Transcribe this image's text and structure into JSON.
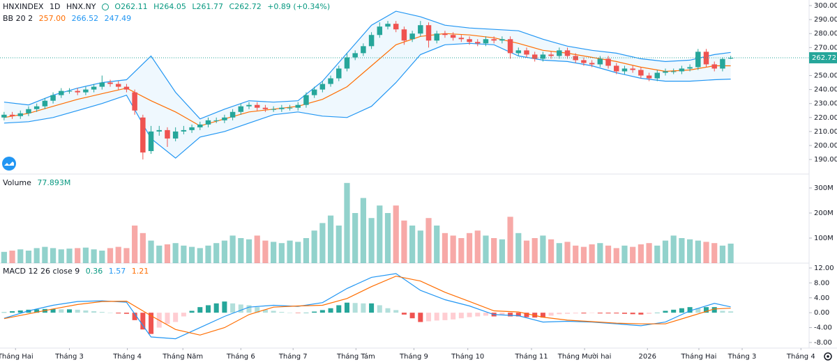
{
  "chart_data": [
    {
      "type": "candlestick",
      "symbol": "HNXINDEX",
      "interval": "1D",
      "exchange": "HNX.NY",
      "ohlc_labels": [
        "O",
        "H",
        "L",
        "C"
      ],
      "ohlc_values": [
        "262.11",
        "264.05",
        "261.77",
        "262.72"
      ],
      "change": "+0.89 (+0.34%)",
      "bb_legend": "BB 20 2",
      "bb_legend_values": [
        "257.00",
        "266.52",
        "247.49"
      ],
      "up_color": "#26a69a",
      "down_color": "#ef5350",
      "open": [
        220,
        222,
        221,
        223,
        226,
        228,
        232,
        236,
        239,
        239,
        238,
        240,
        242,
        245,
        244,
        242,
        238,
        220,
        196,
        210,
        211,
        205,
        210,
        211,
        213,
        215,
        218,
        218,
        220,
        224,
        228,
        229,
        227,
        226,
        226,
        227,
        227,
        229,
        236,
        240,
        244,
        248,
        255,
        263,
        266,
        271,
        279,
        285,
        287,
        283,
        276,
        280,
        286,
        275,
        280,
        279,
        277,
        276,
        274,
        273,
        276,
        275,
        276,
        266,
        268,
        265,
        262,
        265,
        264,
        268,
        264,
        261,
        259,
        258,
        262,
        257,
        253,
        255,
        254,
        250,
        248,
        252,
        253,
        253,
        255,
        256,
        267,
        258,
        255,
        262.11
      ],
      "high": [
        224,
        224,
        225,
        228,
        230,
        234,
        238,
        241,
        241,
        241,
        242,
        244,
        250,
        247,
        246,
        244,
        240,
        222,
        214,
        214,
        213,
        213,
        214,
        215,
        217,
        220,
        220,
        222,
        226,
        230,
        231,
        231,
        229,
        228,
        229,
        229,
        231,
        238,
        242,
        246,
        250,
        257,
        266,
        268,
        273,
        281,
        288,
        289,
        289,
        285,
        282,
        289,
        288,
        282,
        282,
        281,
        279,
        278,
        276,
        278,
        278,
        278,
        278,
        270,
        270,
        267,
        267,
        267,
        270,
        270,
        266,
        263,
        261,
        264,
        264,
        259,
        257,
        257,
        256,
        252,
        254,
        255,
        255,
        257,
        258,
        269,
        269,
        260,
        263,
        264.05
      ],
      "low": [
        218,
        219,
        219,
        221,
        224,
        226,
        230,
        234,
        237,
        236,
        236,
        238,
        240,
        242,
        240,
        238,
        222,
        190,
        194,
        207,
        199,
        203,
        208,
        209,
        211,
        213,
        216,
        216,
        218,
        222,
        226,
        225,
        224,
        224,
        224,
        225,
        225,
        227,
        234,
        238,
        242,
        246,
        253,
        261,
        264,
        269,
        277,
        283,
        281,
        272,
        274,
        278,
        270,
        273,
        277,
        275,
        274,
        272,
        271,
        271,
        273,
        273,
        262,
        264,
        263,
        260,
        260,
        262,
        262,
        262,
        259,
        257,
        256,
        256,
        255,
        251,
        251,
        252,
        248,
        246,
        246,
        250,
        251,
        251,
        253,
        254,
        256,
        253,
        253,
        261.77
      ],
      "close": [
        222,
        221,
        223,
        226,
        228,
        232,
        236,
        239,
        239,
        238,
        240,
        242,
        245,
        244,
        242,
        240,
        225,
        195,
        210,
        211,
        205,
        210,
        211,
        213,
        215,
        218,
        218,
        220,
        224,
        228,
        229,
        227,
        226,
        226,
        227,
        227,
        229,
        236,
        240,
        244,
        248,
        255,
        263,
        266,
        271,
        279,
        285,
        287,
        283,
        275,
        280,
        286,
        275,
        280,
        279,
        277,
        276,
        274,
        273,
        276,
        275,
        276,
        266,
        268,
        265,
        262,
        265,
        264,
        268,
        264,
        261,
        259,
        258,
        262,
        257,
        253,
        255,
        254,
        250,
        248,
        252,
        253,
        253,
        255,
        256,
        267,
        258,
        255,
        261.83,
        262.72
      ],
      "series": [
        {
          "color": "#2196f3",
          "x": [
            0,
            3,
            6,
            9,
            12,
            15,
            18,
            21,
            24,
            27,
            30,
            33,
            36,
            39,
            42,
            45,
            48,
            51,
            54,
            57,
            60,
            63,
            66,
            69,
            72,
            75,
            78,
            81,
            84,
            87,
            89
          ],
          "values": [
            231,
            229,
            236,
            241,
            245,
            247,
            264,
            238,
            219,
            226,
            232,
            231,
            232,
            246,
            266,
            286,
            296,
            292,
            286,
            284,
            283,
            282,
            276,
            271,
            268,
            266,
            262,
            260,
            261,
            265,
            266.52
          ]
        },
        {
          "color": "#ff6d00",
          "x": [
            0,
            3,
            6,
            9,
            12,
            15,
            18,
            21,
            24,
            27,
            30,
            33,
            36,
            39,
            42,
            45,
            48,
            51,
            54,
            57,
            60,
            63,
            66,
            69,
            72,
            75,
            78,
            81,
            84,
            87,
            89
          ],
          "values": [
            220,
            223,
            228,
            233,
            237,
            241,
            232,
            224,
            214,
            219,
            224,
            226,
            228,
            233,
            242,
            257,
            272,
            278,
            280,
            279,
            277,
            273,
            268,
            266,
            263,
            260,
            256,
            253,
            254,
            257,
            257
          ]
        },
        {
          "color": "#2196f3",
          "x": [
            0,
            3,
            6,
            9,
            12,
            15,
            18,
            21,
            24,
            27,
            30,
            33,
            36,
            39,
            42,
            45,
            48,
            51,
            54,
            57,
            60,
            63,
            66,
            69,
            72,
            75,
            78,
            81,
            84,
            87,
            89
          ],
          "values": [
            216,
            217,
            220,
            225,
            230,
            236,
            205,
            191,
            206,
            210,
            216,
            222,
            224,
            221,
            220,
            228,
            245,
            265,
            272,
            273,
            272,
            264,
            261,
            260,
            257,
            252,
            248,
            246,
            246,
            247,
            247.49
          ]
        }
      ],
      "last_price": {
        "value": 262.72,
        "label": "262.72"
      },
      "xlim": [
        -0.5,
        98.6
      ],
      "xticks": [
        {
          "value": 1.4,
          "label": "Tháng Hai"
        },
        {
          "value": 8.0,
          "label": "Tháng 3"
        },
        {
          "value": 15.1,
          "label": "Tháng 4"
        },
        {
          "value": 21.9,
          "label": "Tháng Năm"
        },
        {
          "value": 29.0,
          "label": "Tháng 6"
        },
        {
          "value": 35.4,
          "label": "Tháng 7"
        },
        {
          "value": 43.1,
          "label": "Tháng Tám"
        },
        {
          "value": 50.2,
          "label": "Tháng 9"
        },
        {
          "value": 56.8,
          "label": "Tháng 10"
        },
        {
          "value": 64.6,
          "label": "Tháng 11"
        },
        {
          "value": 71.1,
          "label": "Tháng Mười hai"
        },
        {
          "value": 78.8,
          "label": "2026"
        },
        {
          "value": 85.1,
          "label": "Tháng Hai"
        },
        {
          "value": 90.4,
          "label": "Tháng 3"
        },
        {
          "value": 97.6,
          "label": "Tháng 4"
        }
      ],
      "ylim": [
        179.6,
        304
      ],
      "yticks": [
        {
          "value": 190,
          "label": "190.00"
        },
        {
          "value": 200,
          "label": "200.00"
        },
        {
          "value": 210,
          "label": "210.00"
        },
        {
          "value": 220,
          "label": "220.00"
        },
        {
          "value": 230,
          "label": "230.00"
        },
        {
          "value": 240,
          "label": "240.00"
        },
        {
          "value": 250,
          "label": "250.00"
        },
        {
          "value": 270,
          "label": "270.00"
        },
        {
          "value": 280,
          "label": "280.00"
        },
        {
          "value": 290,
          "label": "290.00"
        },
        {
          "value": 300,
          "label": "300.00"
        }
      ]
    },
    {
      "type": "volume",
      "legend": "Volume",
      "legend_value": "77.893M",
      "values": [
        45,
        50,
        55,
        50,
        60,
        65,
        60,
        55,
        58,
        60,
        62,
        55,
        50,
        60,
        65,
        60,
        150,
        120,
        90,
        70,
        75,
        80,
        70,
        65,
        60,
        70,
        80,
        90,
        110,
        100,
        95,
        110,
        90,
        85,
        80,
        90,
        85,
        100,
        130,
        160,
        190,
        150,
        320,
        200,
        260,
        180,
        230,
        200,
        230,
        170,
        150,
        130,
        180,
        150,
        120,
        110,
        100,
        120,
        130,
        110,
        100,
        95,
        185,
        120,
        90,
        100,
        110,
        95,
        80,
        85,
        70,
        65,
        75,
        80,
        70,
        60,
        70,
        65,
        75,
        80,
        70,
        90,
        110,
        100,
        95,
        90,
        85,
        80,
        70,
        77.893
      ],
      "ylim": [
        0,
        355.6
      ],
      "yticks": [
        {
          "value": 100,
          "label": "100M"
        },
        {
          "value": 200,
          "label": "200M"
        },
        {
          "value": 300,
          "label": "300M"
        }
      ]
    },
    {
      "type": "macd",
      "legend": "MACD 12 26 close 9",
      "legend_values": [
        "0.36",
        "1.57",
        "1.21"
      ],
      "values": [
        0.1,
        0.4,
        0.6,
        0.8,
        0.9,
        1.0,
        1.0,
        0.9,
        0.9,
        0.8,
        0.6,
        0.4,
        0.2,
        0,
        -0.2,
        -0.3,
        -2.0,
        -4.5,
        -5.7,
        -4.0,
        -3.0,
        -2.5,
        -1.0,
        0.5,
        1.5,
        2.0,
        2.5,
        3.0,
        2.5,
        2.2,
        2.0,
        1.5,
        0.8,
        0.5,
        0.2,
        0,
        -0.1,
        0,
        0.3,
        0.7,
        1.2,
        2.0,
        2.7,
        2.6,
        2.5,
        2.5,
        2.0,
        1.2,
        0.7,
        -0.5,
        -1.5,
        -2.5,
        -2.3,
        -2.1,
        -2.0,
        -1.8,
        -1.5,
        -1.2,
        -1.0,
        -0.8,
        -1.0,
        -0.5,
        -1.0,
        -1.0,
        -1.2,
        -1.3,
        -1.3,
        -0.8,
        -0.4,
        -0.3,
        -0.2,
        -0.2,
        -0.1,
        -0.2,
        -0.2,
        -0.2,
        -0.3,
        -0.4,
        -0.5,
        -0.3,
        0,
        0.5,
        0.8,
        1.2,
        1.5,
        1.2,
        1.5,
        1.5,
        0.5,
        0.36
      ],
      "series": [
        {
          "color": "#2196f3",
          "x": [
            0,
            3,
            6,
            9,
            12,
            15,
            18,
            21,
            24,
            27,
            30,
            33,
            36,
            39,
            42,
            45,
            48,
            51,
            54,
            57,
            60,
            63,
            66,
            69,
            72,
            75,
            78,
            81,
            84,
            87,
            89
          ],
          "values": [
            -1.5,
            0.5,
            2.0,
            3.0,
            3.2,
            2.8,
            -6.5,
            -7.0,
            -4.0,
            -1.0,
            1.5,
            2.0,
            1.7,
            2.7,
            6.5,
            9.5,
            10.5,
            6.0,
            3.5,
            1.8,
            -0.5,
            -0.8,
            -2.5,
            -2.3,
            -2.5,
            -3.0,
            -3.5,
            -2.5,
            0.5,
            2.5,
            1.57
          ]
        },
        {
          "color": "#ff6d00",
          "x": [
            0,
            3,
            6,
            9,
            12,
            15,
            18,
            21,
            24,
            27,
            30,
            33,
            36,
            39,
            42,
            45,
            48,
            51,
            54,
            57,
            60,
            63,
            66,
            69,
            72,
            75,
            78,
            81,
            84,
            87,
            89
          ],
          "values": [
            -1.6,
            -0.3,
            1.0,
            2.2,
            3.0,
            3.1,
            -0.8,
            -4.5,
            -6.0,
            -4.0,
            -0.5,
            1.5,
            1.8,
            2.0,
            3.8,
            7.0,
            9.8,
            8.5,
            5.5,
            3.0,
            0.5,
            0.2,
            -1.2,
            -2.0,
            -2.4,
            -2.8,
            -3.0,
            -3.0,
            -1.0,
            1.0,
            1.21
          ]
        }
      ],
      "ylim": [
        -9.5,
        12.93
      ],
      "yticks": [
        {
          "value": -8,
          "label": "-8.00"
        },
        {
          "value": -4,
          "label": "-4.00"
        },
        {
          "value": 0,
          "label": "0.00"
        },
        {
          "value": 4,
          "label": "4.00"
        },
        {
          "value": 8,
          "label": "8.00"
        },
        {
          "value": 12,
          "label": "12.00"
        }
      ]
    }
  ]
}
